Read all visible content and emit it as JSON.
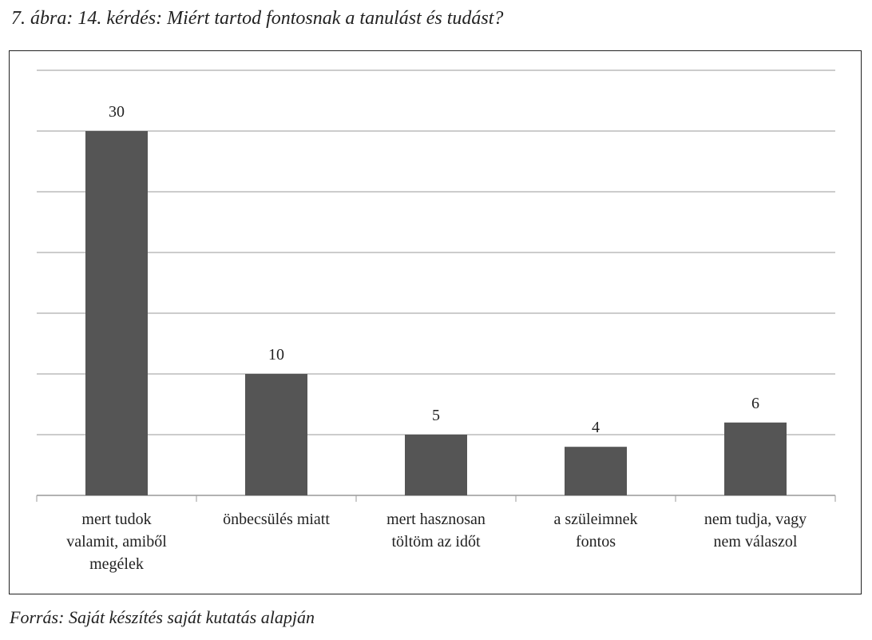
{
  "title": "7. ábra: 14. kérdés: Miért tartod fontosnak a tanulást és tudást?",
  "source": "Forrás: Saját készítés saját kutatás alapján",
  "chart_data": {
    "type": "bar",
    "title": "7. ábra: 14. kérdés: Miért tartod fontosnak a tanulást és tudást?",
    "categories": [
      "mert tudok\nvalamit, amiből\nmegélek",
      "önbecsülés miatt",
      "mert hasznosan\ntöltöm az időt",
      "a szüleimnek\nfontos",
      "nem tudja, vagy\nnem válaszol"
    ],
    "values": [
      30,
      10,
      5,
      4,
      6
    ],
    "data_labels": [
      "30",
      "10",
      "5",
      "4",
      "6"
    ],
    "xlabel": "",
    "ylabel": "",
    "ylim": [
      0,
      35
    ],
    "grid": true,
    "gridline_step": 5,
    "y_tick_labels_shown": false,
    "bar_color": "#555555",
    "grid_color": "#999999"
  }
}
